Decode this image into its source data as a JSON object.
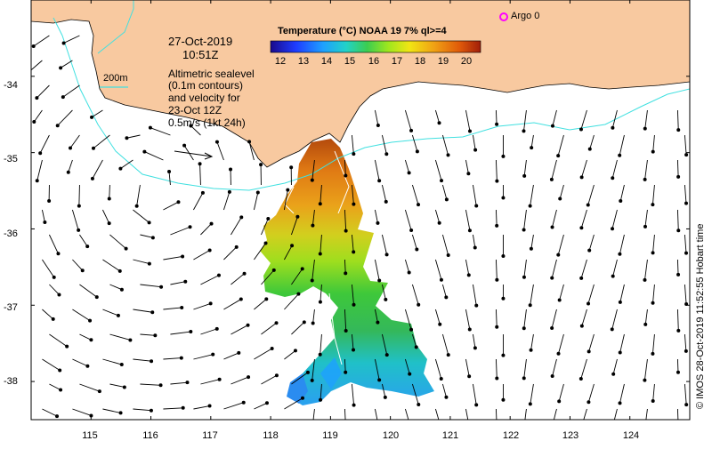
{
  "map": {
    "date": "27-Oct-2019",
    "time": "10:51Z",
    "scale_label": "200m",
    "altimetry_note": [
      "Altimetric sealevel",
      "(0.1m contours)",
      "and velocity for",
      "23-Oct 12Z",
      "0.5m/s (1kt 24h)"
    ],
    "argo_label": "Argo 0",
    "credit": "© IMOS 28-Oct-2019 11:52:55 Hobart time",
    "lat_ticks": [
      "-34",
      "-35",
      "-36",
      "-37",
      "-38"
    ],
    "lon_ticks": [
      "115",
      "116",
      "117",
      "118",
      "119",
      "120",
      "121",
      "122",
      "123",
      "124"
    ],
    "colors": {
      "land": "#f8c9a0",
      "contour": "#40e0e0",
      "argo": "#ff00ff"
    }
  },
  "colorbar": {
    "title": "Temperature (°C) NOAA 19 7% ql>=4",
    "ticks": [
      "12",
      "13",
      "14",
      "15",
      "16",
      "17",
      "18",
      "19",
      "20"
    ],
    "range": [
      11.5,
      20.5
    ]
  },
  "chart_data": {
    "type": "heatmap",
    "title": "Temperature (°C) NOAA 19 7% ql>=4",
    "xlim": [
      114.0,
      125.0
    ],
    "ylim": [
      -38.5,
      -33.0
    ],
    "x_ticks": [
      115,
      116,
      117,
      118,
      119,
      120,
      121,
      122,
      123,
      124
    ],
    "y_ticks": [
      -34,
      -35,
      -36,
      -37,
      -38
    ],
    "colorbar_ticks": [
      12,
      13,
      14,
      15,
      16,
      17,
      18,
      19,
      20
    ],
    "points": [
      {
        "label": "Argo 0",
        "lon": 122.3,
        "lat": -33.3
      }
    ]
  }
}
